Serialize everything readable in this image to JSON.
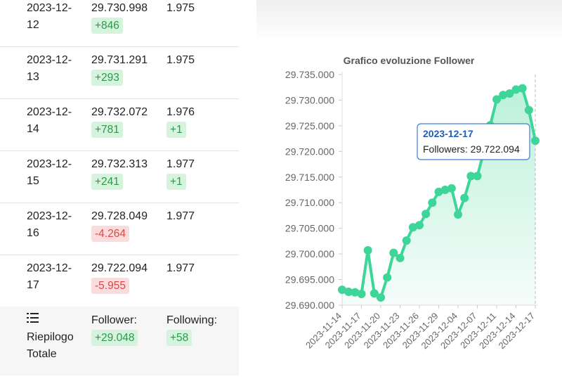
{
  "table": {
    "rows": [
      {
        "date": "2023-12-12",
        "followers": "29.730.998",
        "followers_change": "+846",
        "following": "1.975"
      },
      {
        "date": "2023-12-13",
        "followers": "29.731.291",
        "followers_change": "+293",
        "following": "1.975"
      },
      {
        "date": "2023-12-14",
        "followers": "29.732.072",
        "followers_change": "+781",
        "following": "1.976",
        "following_change": "+1"
      },
      {
        "date": "2023-12-15",
        "followers": "29.732.313",
        "followers_change": "+241",
        "following": "1.977",
        "following_change": "+1"
      },
      {
        "date": "2023-12-16",
        "followers": "29.728.049",
        "followers_change": "-4.264",
        "following": "1.977"
      },
      {
        "date": "2023-12-17",
        "followers": "29.722.094",
        "followers_change": "-5.955",
        "following": "1.977"
      }
    ],
    "summary": {
      "label": "Riepilogo Totale",
      "follower_label": "Follower:",
      "follower_change": "+29.048",
      "following_label": "Following:",
      "following_change": "+58"
    }
  },
  "chart_data": {
    "type": "line",
    "title": "Grafico evoluzione Follower",
    "color": "#3ed598",
    "categories": [
      "2023-11-14",
      null,
      null,
      "2023-11-17",
      null,
      null,
      "2023-11-20",
      null,
      null,
      "2023-11-23",
      null,
      null,
      "2023-11-26",
      null,
      null,
      "2023-11-29",
      null,
      null,
      "2023-12-04",
      null,
      null,
      "2023-12-07",
      null,
      null,
      "2023-12-11",
      null,
      null,
      "2023-12-14",
      null,
      null,
      "2023-12-17"
    ],
    "series": [
      {
        "name": "Followers",
        "color": "#3ed598",
        "values": [
          29693000,
          29692600,
          29692500,
          29692200,
          29700700,
          29692300,
          29691500,
          29695400,
          29700200,
          29699200,
          29702600,
          29705200,
          29705600,
          29707800,
          29710000,
          29712100,
          29712500,
          29712800,
          29707700,
          29710900,
          29715200,
          29715200,
          29720000,
          29725100,
          29730152,
          29730998,
          29731291,
          29732072,
          29732313,
          29728049,
          29722094
        ]
      }
    ],
    "ylim": [
      29690000,
      29735000
    ],
    "yticks": [
      {
        "value": 29690000,
        "label": "29.690.000"
      },
      {
        "value": 29695000,
        "label": "29.695.000"
      },
      {
        "value": 29700000,
        "label": "29.700.000"
      },
      {
        "value": 29705000,
        "label": "29.705.000"
      },
      {
        "value": 29710000,
        "label": "29.710.000"
      },
      {
        "value": 29715000,
        "label": "29.715.000"
      },
      {
        "value": 29720000,
        "label": "29.720.000"
      },
      {
        "value": 29725000,
        "label": "29.725.000"
      },
      {
        "value": 29730000,
        "label": "29.730.000"
      },
      {
        "value": 29735000,
        "label": "29.735.000"
      }
    ],
    "tooltip": {
      "title": "2023-12-17",
      "label": "Followers: 29.722.094"
    }
  }
}
